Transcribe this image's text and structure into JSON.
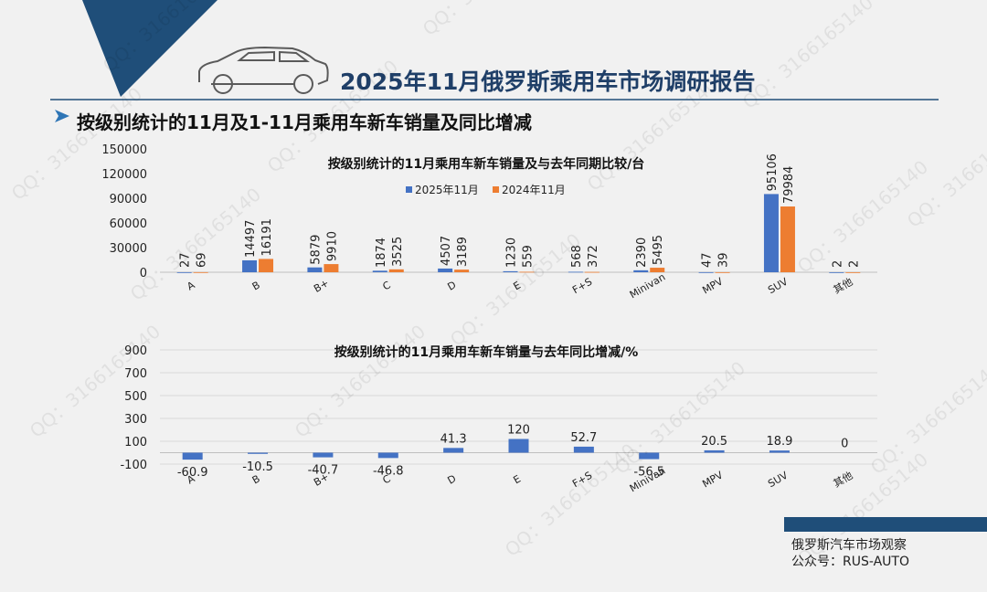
{
  "header": {
    "title": "2025年11月俄罗斯乘用车市场调研报告",
    "subtitle": "按级别统计的11月及1-11月乘用车新车销量及同比增减"
  },
  "watermark": "QQ：3166165140",
  "footer": {
    "line1": "俄罗斯汽车市场观察",
    "line2": "公众号：RUS-AUTO"
  },
  "colors": {
    "navy": "#1f4e79",
    "series_2025": "#4472c4",
    "series_2024": "#ed7d31"
  },
  "chart_data": [
    {
      "type": "bar",
      "title": "按级别统计的11月乘用车新车销量及与去年同期比较/台",
      "categories": [
        "A",
        "B",
        "B+",
        "C",
        "D",
        "E",
        "F+S",
        "Minivan",
        "MPV",
        "SUV",
        "其他"
      ],
      "series": [
        {
          "name": "2025年11月",
          "values": [
            27,
            14497,
            5879,
            1874,
            4507,
            1230,
            568,
            2390,
            47,
            95106,
            2
          ]
        },
        {
          "name": "2024年11月",
          "values": [
            69,
            16191,
            9910,
            3525,
            3189,
            559,
            372,
            5495,
            39,
            79984,
            2
          ]
        }
      ],
      "yticks": [
        0,
        30000,
        60000,
        90000,
        120000,
        150000
      ],
      "ylim": [
        0,
        150000
      ],
      "legend": "top"
    },
    {
      "type": "bar",
      "title": "按级别统计的11月乘用车新车销量与去年同比增减/%",
      "categories": [
        "A",
        "B",
        "B+",
        "C",
        "D",
        "E",
        "F+S",
        "Minivan",
        "MPV",
        "SUV",
        "其他"
      ],
      "values": [
        -60.9,
        -10.5,
        -40.7,
        -46.8,
        41.3,
        120,
        52.7,
        -56.5,
        20.5,
        18.9,
        0
      ],
      "yticks": [
        -100,
        100,
        300,
        500,
        700,
        900
      ],
      "ylim": [
        -100,
        900
      ]
    }
  ]
}
